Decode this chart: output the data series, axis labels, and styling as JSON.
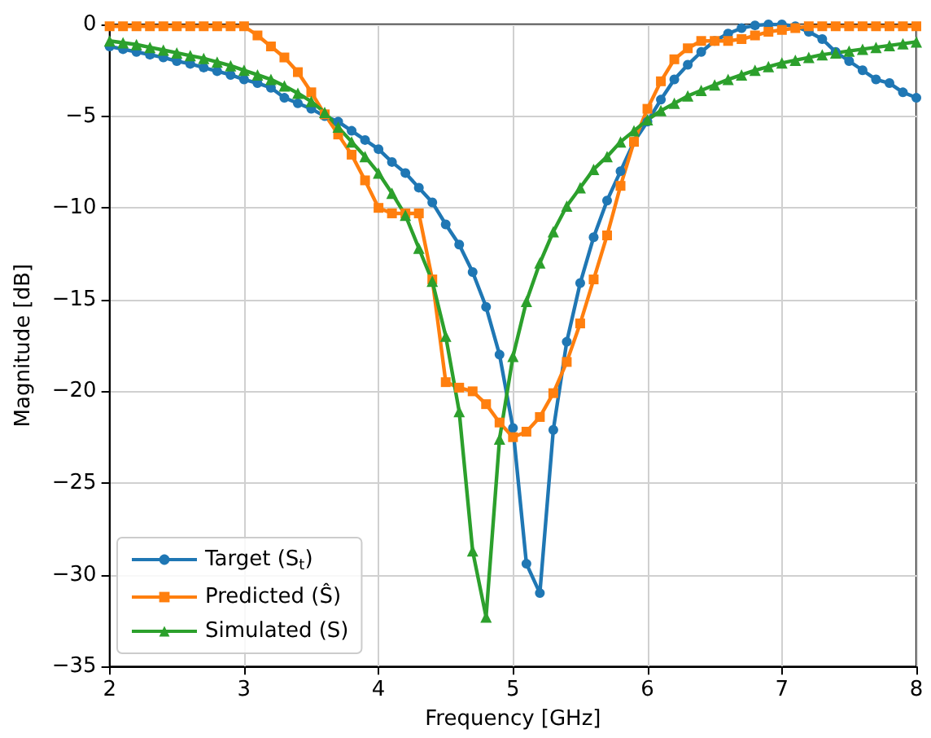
{
  "chart_data": {
    "type": "line",
    "xlabel": "Frequency [GHz]",
    "ylabel": "Magnitude [dB]",
    "x": [
      2.0,
      2.1,
      2.2,
      2.3,
      2.4,
      2.5,
      2.6,
      2.7,
      2.8,
      2.9,
      3.0,
      3.1,
      3.2,
      3.3,
      3.4,
      3.5,
      3.6,
      3.7,
      3.8,
      3.9,
      4.0,
      4.1,
      4.2,
      4.3,
      4.4,
      4.5,
      4.6,
      4.7,
      4.8,
      4.9,
      5.0,
      5.1,
      5.2,
      5.3,
      5.4,
      5.5,
      5.6,
      5.7,
      5.8,
      5.9,
      6.0,
      6.1,
      6.2,
      6.3,
      6.4,
      6.5,
      6.6,
      6.7,
      6.8,
      6.9,
      7.0,
      7.1,
      7.2,
      7.3,
      7.4,
      7.5,
      7.6,
      7.7,
      7.8,
      7.9,
      8.0
    ],
    "series": [
      {
        "name": "Target (S$_{t}$)",
        "color": "#1f77b4",
        "marker": "circle",
        "values": [
          -1.2,
          -1.35,
          -1.5,
          -1.65,
          -1.8,
          -2.0,
          -2.15,
          -2.35,
          -2.55,
          -2.75,
          -3.0,
          -3.2,
          -3.45,
          -4.0,
          -4.3,
          -4.6,
          -5.0,
          -5.3,
          -5.8,
          -6.3,
          -6.8,
          -7.5,
          -8.1,
          -8.9,
          -9.7,
          -10.9,
          -12.0,
          -13.5,
          -15.4,
          -18.0,
          -22.0,
          -29.4,
          -31.0,
          -22.1,
          -17.3,
          -14.1,
          -11.6,
          -9.6,
          -8.0,
          -6.4,
          -5.3,
          -4.1,
          -3.0,
          -2.2,
          -1.5,
          -0.9,
          -0.5,
          -0.2,
          -0.05,
          0,
          0,
          -0.1,
          -0.4,
          -0.8,
          -1.5,
          -2.0,
          -2.5,
          -3.0,
          -3.2,
          -3.7,
          -4.0
        ]
      },
      {
        "name": "Predicted (Ŝ)",
        "color": "#ff7f0e",
        "marker": "square",
        "values": [
          -0.1,
          -0.1,
          -0.1,
          -0.1,
          -0.1,
          -0.1,
          -0.1,
          -0.1,
          -0.1,
          -0.1,
          -0.1,
          -0.6,
          -1.2,
          -1.8,
          -2.6,
          -3.7,
          -4.9,
          -6.0,
          -7.1,
          -8.5,
          -10.0,
          -10.3,
          -10.3,
          -10.3,
          -13.9,
          -19.5,
          -19.8,
          -20.0,
          -20.7,
          -21.7,
          -22.5,
          -22.2,
          -21.4,
          -20.1,
          -18.4,
          -16.3,
          -13.9,
          -11.5,
          -8.8,
          -6.4,
          -4.6,
          -3.1,
          -1.9,
          -1.3,
          -0.9,
          -0.9,
          -0.9,
          -0.8,
          -0.6,
          -0.4,
          -0.3,
          -0.2,
          -0.1,
          -0.1,
          -0.1,
          -0.1,
          -0.1,
          -0.1,
          -0.1,
          -0.1,
          -0.1
        ]
      },
      {
        "name": "Simulated (S)",
        "color": "#2ca02c",
        "marker": "triangle",
        "values": [
          -0.9,
          -1.0,
          -1.1,
          -1.25,
          -1.4,
          -1.55,
          -1.7,
          -1.85,
          -2.05,
          -2.25,
          -2.5,
          -2.75,
          -3.0,
          -3.35,
          -3.75,
          -4.2,
          -4.8,
          -5.6,
          -6.4,
          -7.2,
          -8.1,
          -9.2,
          -10.4,
          -12.2,
          -14.0,
          -17.0,
          -21.1,
          -28.7,
          -32.3,
          -22.6,
          -18.1,
          -15.1,
          -13.0,
          -11.3,
          -9.9,
          -8.9,
          -7.9,
          -7.2,
          -6.4,
          -5.8,
          -5.2,
          -4.7,
          -4.3,
          -3.9,
          -3.6,
          -3.3,
          -3.0,
          -2.75,
          -2.5,
          -2.3,
          -2.1,
          -1.95,
          -1.8,
          -1.65,
          -1.55,
          -1.45,
          -1.35,
          -1.25,
          -1.15,
          -1.05,
          -0.95
        ]
      }
    ],
    "xlim": [
      2,
      8
    ],
    "xticks": [
      2,
      3,
      4,
      5,
      6,
      7,
      8
    ],
    "ylim": [
      -35,
      0
    ],
    "yticks": [
      -35,
      -30,
      -25,
      -20,
      -15,
      -10,
      -5,
      0
    ],
    "grid": true,
    "legend": "bottom left",
    "line_style": "solid"
  }
}
